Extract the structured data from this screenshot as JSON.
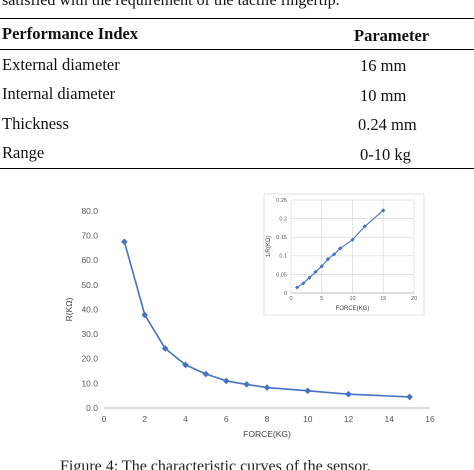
{
  "caption_top": "satisfied with the requirement of the tactile fingertip.",
  "table": {
    "headers": [
      "Performance Index",
      "Parameter"
    ],
    "rows": [
      [
        "External diameter",
        "16 mm"
      ],
      [
        "Internal diameter",
        "10 mm"
      ],
      [
        "Thickness",
        "0.24 mm"
      ],
      [
        "Range",
        "0-10 kg"
      ]
    ]
  },
  "chart_data": [
    {
      "type": "line",
      "xlabel": "FORCE(KG)",
      "ylabel": "R(KΩ)",
      "xlim": [
        0,
        16
      ],
      "ylim": [
        0,
        80
      ],
      "xticks": [
        "0",
        "2",
        "4",
        "6",
        "8",
        "10",
        "12",
        "14",
        "16"
      ],
      "yticks": [
        "0.0",
        "10.0",
        "20.0",
        "30.0",
        "40.0",
        "50.0",
        "60.0",
        "70.0",
        "80.0"
      ],
      "grid": false,
      "line_color": "#4472c4",
      "x": [
        1,
        2,
        3,
        4,
        5,
        6,
        7,
        8,
        10,
        12,
        15
      ],
      "y": [
        67.5,
        37.8,
        24.2,
        17.5,
        13.8,
        11.0,
        9.6,
        8.3,
        7.0,
        5.6,
        4.5
      ]
    },
    {
      "type": "line",
      "xlabel": "FORCE(KG)",
      "ylabel": "1/R(KΩ)",
      "xlim": [
        0,
        20
      ],
      "ylim": [
        0,
        0.25
      ],
      "xticks": [
        "0",
        "5",
        "10",
        "15",
        "20"
      ],
      "yticks": [
        "0",
        "0.05",
        "0.1",
        "0.15",
        "0.2",
        "0.25"
      ],
      "grid": true,
      "line_color": "#4472c4",
      "x": [
        1,
        2,
        3,
        4,
        5,
        6,
        7,
        8,
        10,
        12,
        15
      ],
      "y": [
        0.015,
        0.026,
        0.041,
        0.057,
        0.072,
        0.091,
        0.104,
        0.12,
        0.143,
        0.179,
        0.222
      ]
    }
  ],
  "caption_bottom": "Figure 4: The characteristic curves of the sensor."
}
